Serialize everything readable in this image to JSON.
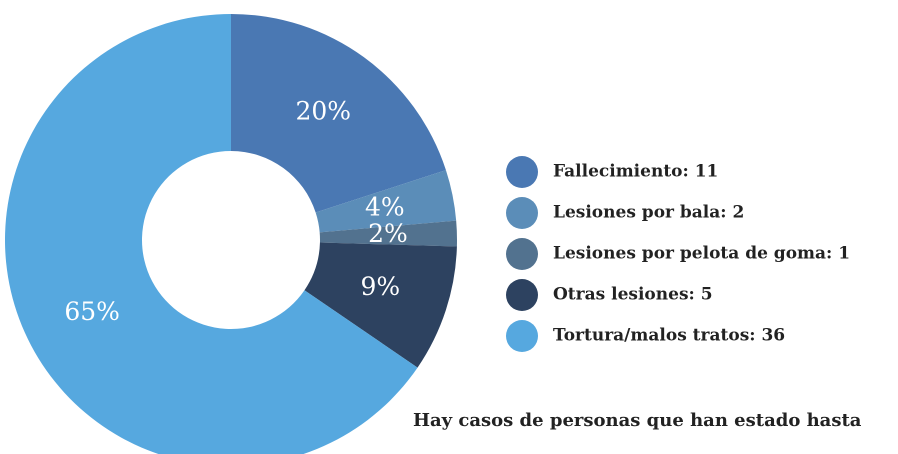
{
  "chart_data": {
    "type": "donut",
    "labels": [
      "Fallecimiento: 11",
      "Lesiones por bala: 2",
      "Lesiones por pelota de goma: 1",
      "Otras lesiones: 5",
      "Tortura/malos tratos: 36"
    ],
    "values": [
      11,
      2,
      1,
      5,
      36
    ],
    "value_labels": [
      "20%",
      "4%",
      "2%",
      "9%",
      "65%"
    ],
    "colors": [
      "#4a78b3",
      "#5b8db8",
      "#52728f",
      "#2d4260",
      "#56a8df"
    ],
    "legend": "right"
  },
  "caption": "Hay casos de personas que han estado hasta"
}
